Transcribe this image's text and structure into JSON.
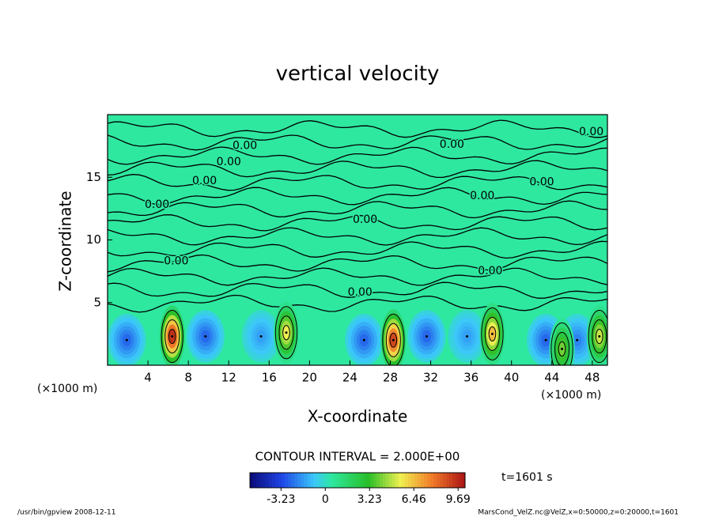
{
  "chart_data": {
    "type": "contour",
    "title": "vertical velocity",
    "xlabel": "X-coordinate",
    "ylabel": "Z-coordinate",
    "x_unit": "(×1000 m)",
    "xlim": [
      0,
      49.5
    ],
    "xticks": [
      4,
      8,
      12,
      16,
      20,
      24,
      28,
      32,
      36,
      40,
      44,
      48
    ],
    "ylim": [
      0,
      20
    ],
    "yticks": [
      5,
      10,
      15
    ],
    "background_color": "#2ee8a0",
    "cells": [
      {
        "x": 1.9,
        "z": 2.0,
        "w": -2.5
      },
      {
        "x": 9.7,
        "z": 2.3,
        "w": -2.5
      },
      {
        "x": 15.2,
        "z": 2.3,
        "w": -1.5
      },
      {
        "x": 25.4,
        "z": 2.0,
        "w": -2.5
      },
      {
        "x": 31.6,
        "z": 2.3,
        "w": -2.5
      },
      {
        "x": 35.6,
        "z": 2.3,
        "w": -1.5
      },
      {
        "x": 43.4,
        "z": 2.0,
        "w": -2.5
      },
      {
        "x": 46.5,
        "z": 2.0,
        "w": -2.0
      },
      {
        "x": 6.4,
        "z": 2.3,
        "w": 9.5
      },
      {
        "x": 17.7,
        "z": 2.6,
        "w": 5.5
      },
      {
        "x": 28.3,
        "z": 2.0,
        "w": 9.0
      },
      {
        "x": 38.1,
        "z": 2.5,
        "w": 6.5
      },
      {
        "x": 45.0,
        "z": 1.3,
        "w": 4.0
      },
      {
        "x": 48.7,
        "z": 2.3,
        "w": 5.0
      }
    ],
    "contour_labels": [
      {
        "value": 0,
        "label": "0.00",
        "x": 13.6,
        "z": 17.5
      },
      {
        "value": 0,
        "label": "0.00",
        "x": 12.0,
        "z": 16.2
      },
      {
        "value": 0,
        "label": "0.00",
        "x": 9.6,
        "z": 14.7
      },
      {
        "value": 0,
        "label": "0.00",
        "x": 4.9,
        "z": 12.8
      },
      {
        "value": 0,
        "label": "0.00",
        "x": 6.8,
        "z": 8.3
      },
      {
        "value": 0,
        "label": "0.00",
        "x": 34.1,
        "z": 17.6
      },
      {
        "value": 0,
        "label": "0.00",
        "x": 47.9,
        "z": 18.6
      },
      {
        "value": 0,
        "label": "0.00",
        "x": 37.1,
        "z": 13.5
      },
      {
        "value": 0,
        "label": "0.00",
        "x": 43.0,
        "z": 14.6
      },
      {
        "value": 0,
        "label": "0.00",
        "x": 25.5,
        "z": 11.6
      },
      {
        "value": 0,
        "label": "0.00",
        "x": 37.9,
        "z": 7.5
      },
      {
        "value": 0,
        "label": "0.00",
        "x": 25.0,
        "z": 5.8
      }
    ],
    "contour_interval": "CONTOUR INTERVAL = 2.000E+00",
    "clim": [
      -5.5,
      10.2
    ],
    "cticks": [
      -3.23,
      0,
      3.23,
      6.46,
      9.69
    ],
    "time_label": "t=1601 s",
    "footer_left": "/usr/bin/gpview   2008-12-11",
    "footer_right": "MarsCond_VelZ.nc@VelZ,x=0:50000,z=0:20000,t=1601"
  }
}
